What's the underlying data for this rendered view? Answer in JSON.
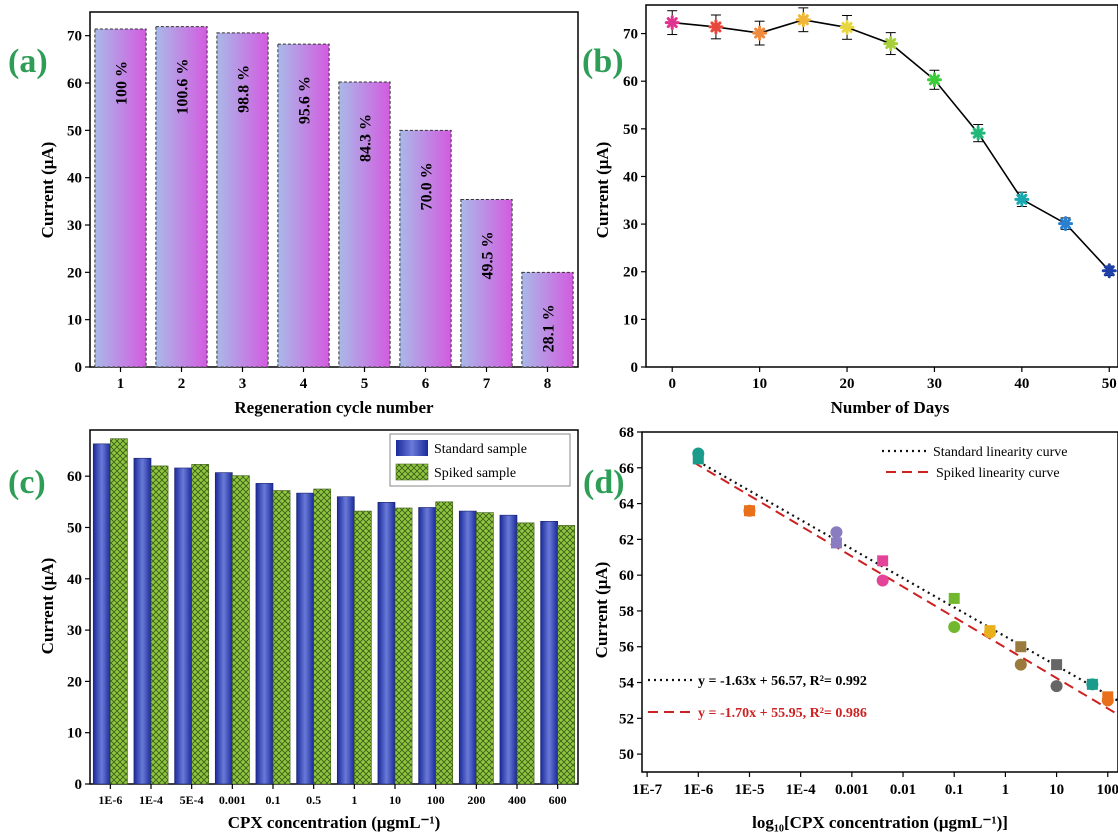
{
  "panels": {
    "a": "(a)",
    "b": "(b)",
    "c": "(c)",
    "d": "(d)"
  },
  "chart_data": [
    {
      "id": "a",
      "type": "bar",
      "title": "",
      "xlabel": "Regeneration cycle number",
      "ylabel": "Current (μA)",
      "ylim": [
        0,
        75
      ],
      "yticks": [
        0,
        10,
        20,
        30,
        40,
        50,
        60,
        70
      ],
      "categories": [
        "1",
        "2",
        "3",
        "4",
        "5",
        "6",
        "7",
        "8"
      ],
      "values": [
        71.4,
        71.9,
        70.6,
        68.2,
        60.2,
        50.0,
        35.4,
        20.0
      ],
      "bar_labels": [
        "100 %",
        "100.6 %",
        "98.8 %",
        "95.6 %",
        "84.3 %",
        "70.0 %",
        "49.5 %",
        "28.1 %"
      ],
      "colors": {
        "left": "#a9b9e8",
        "right": "#d35be0"
      }
    },
    {
      "id": "b",
      "type": "line",
      "title": "",
      "xlabel": "Number of Days",
      "ylabel": "Current (μA)",
      "xlim": [
        -3,
        51
      ],
      "ylim": [
        0,
        76
      ],
      "xticks": [
        0,
        10,
        20,
        30,
        40,
        50
      ],
      "yticks": [
        0,
        10,
        20,
        30,
        40,
        50,
        60,
        70
      ],
      "x": [
        0,
        5,
        10,
        15,
        20,
        25,
        30,
        35,
        40,
        45,
        50
      ],
      "y": [
        72.3,
        71.4,
        70.1,
        72.9,
        71.3,
        67.9,
        60.3,
        49.1,
        35.2,
        30.1,
        20.2
      ],
      "err": [
        2.5,
        2.5,
        2.5,
        2.5,
        2.5,
        2.3,
        2.0,
        1.8,
        1.5,
        1.2,
        1.0
      ],
      "colors": [
        "#e0338f",
        "#e6473a",
        "#f08a3c",
        "#f2b636",
        "#e8d63e",
        "#a6cf3a",
        "#3bcc3a",
        "#22b87a",
        "#1aa8b0",
        "#2a7fcf",
        "#1f3fa8"
      ]
    },
    {
      "id": "c",
      "type": "bar",
      "title": "",
      "xlabel": "CPX concentration (μgmL⁻¹)",
      "ylabel": "Current (μA)",
      "ylim": [
        0,
        69
      ],
      "yticks": [
        0,
        10,
        20,
        30,
        40,
        50,
        60
      ],
      "categories": [
        "1E-6",
        "1E-4",
        "5E-4",
        "0.001",
        "0.1",
        "0.5",
        "1",
        "10",
        "100",
        "200",
        "400",
        "600"
      ],
      "series": [
        {
          "name": "Standard sample",
          "values": [
            66.3,
            63.5,
            61.6,
            60.7,
            58.6,
            56.7,
            56.0,
            54.9,
            53.9,
            53.2,
            52.4,
            51.2
          ],
          "color": "#2b3db5"
        },
        {
          "name": "Spiked sample",
          "values": [
            67.3,
            62.0,
            62.3,
            60.1,
            57.2,
            57.5,
            53.2,
            53.8,
            55.0,
            52.9,
            50.9,
            50.4
          ],
          "color": "#8ec63f"
        }
      ],
      "legend": "top-right"
    },
    {
      "id": "d",
      "type": "scatter",
      "title": "",
      "xlabel": "log₁₀[CPX concentration (μgmL⁻¹)]",
      "ylabel": "Current (μA)",
      "xscale": "log",
      "xlim_log10": [
        -7.1,
        2.2
      ],
      "ylim": [
        49,
        68
      ],
      "xtick_labels": [
        "1E-7",
        "1E-6",
        "1E-5",
        "1E-4",
        "0.001",
        "0.01",
        "0.1",
        "1",
        "10",
        "100"
      ],
      "yticks": [
        50,
        52,
        54,
        56,
        58,
        60,
        62,
        64,
        66,
        68
      ],
      "series": [
        {
          "name": "Standard linearity curve",
          "marker": "square",
          "line": "dotted",
          "line_color": "#111111",
          "x": [
            1e-06,
            1e-05,
            0.0005,
            0.004,
            0.1,
            0.5,
            2,
            10,
            50,
            100
          ],
          "y": [
            66.5,
            63.6,
            61.8,
            60.8,
            58.7,
            56.9,
            56.0,
            55.0,
            53.9,
            53.2
          ],
          "fit": {
            "slope": -1.63,
            "intercept": 56.57,
            "x_range_log10": [
              -6.1,
              2.2
            ]
          }
        },
        {
          "name": "Spiked linearity curve",
          "marker": "circle",
          "line": "dashed",
          "line_color": "#cc2222",
          "x": [
            1e-06,
            1e-05,
            0.0005,
            0.004,
            0.1,
            0.5,
            2,
            10,
            50,
            100
          ],
          "y": [
            66.8,
            63.6,
            62.4,
            59.7,
            57.1,
            56.8,
            55.0,
            53.8,
            53.9,
            53.0
          ],
          "fit": {
            "slope": -1.7,
            "intercept": 55.95,
            "x_range_log10": [
              -6.1,
              2.2
            ]
          }
        }
      ],
      "point_colors": [
        "#1a9b8c",
        "#e8701a",
        "#8a7cc0",
        "#e34398",
        "#72b82e",
        "#e8b01c",
        "#9b7a3d",
        "#666666",
        "#1a9b8c",
        "#e8701a"
      ],
      "equations": [
        "y = -1.63x + 56.57, R²= 0.992",
        "y = -1.70x + 55.95, R²= 0.986"
      ],
      "legend": "top-right"
    }
  ]
}
